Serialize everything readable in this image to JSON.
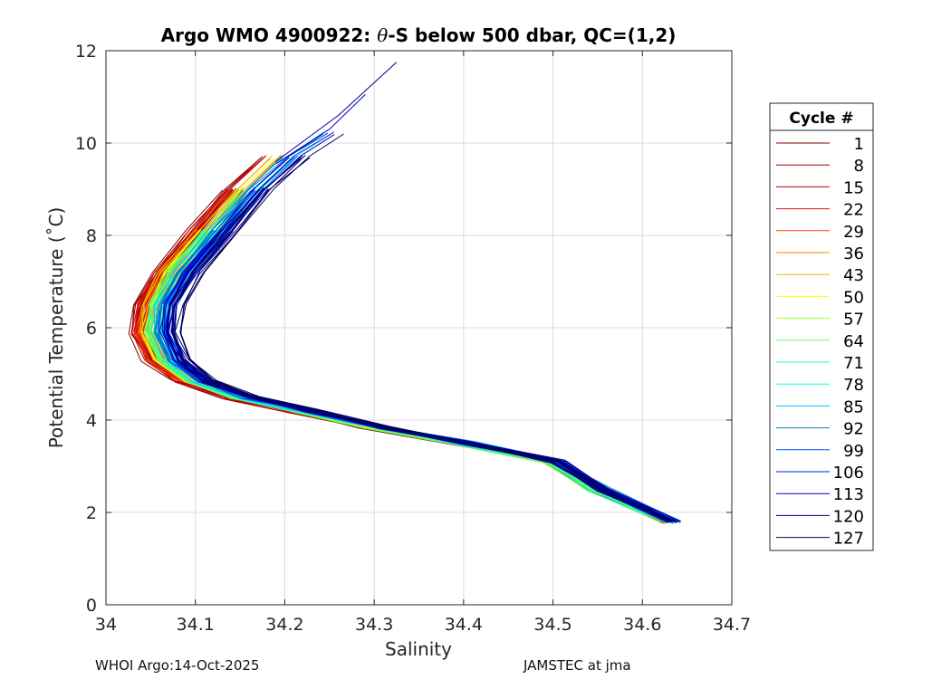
{
  "chart_data": {
    "type": "line",
    "title": "Argo WMO 4900922: θ-S below 500 dbar,  QC=(1,2)",
    "title_parts": {
      "prefix": "Argo WMO 4900922: ",
      "symbol": "θ",
      "suffix": "-S below 500 dbar,  QC=(1,2)"
    },
    "xlabel": "Salinity",
    "ylabel": "Potential Temperature (˚C)",
    "xlim": [
      34,
      34.7
    ],
    "ylim": [
      0,
      12
    ],
    "xticks": [
      "34",
      "34.1",
      "34.2",
      "34.3",
      "34.4",
      "34.5",
      "34.6",
      "34.7"
    ],
    "yticks": [
      "0",
      "2",
      "4",
      "6",
      "8",
      "10",
      "12"
    ],
    "grid": true,
    "legend_position": "right",
    "legend": {
      "title": "Cycle #",
      "entries": [
        {
          "label": "1",
          "color": "#800000"
        },
        {
          "label": "8",
          "color": "#a00000"
        },
        {
          "label": "15",
          "color": "#c00000"
        },
        {
          "label": "22",
          "color": "#e01010"
        },
        {
          "label": "29",
          "color": "#ff4000"
        },
        {
          "label": "36",
          "color": "#ff8000"
        },
        {
          "label": "43",
          "color": "#e0c000"
        },
        {
          "label": "50",
          "color": "#ffff00"
        },
        {
          "label": "57",
          "color": "#a0ff30"
        },
        {
          "label": "64",
          "color": "#60ff60"
        },
        {
          "label": "71",
          "color": "#20ffa0"
        },
        {
          "label": "78",
          "color": "#00ffe0"
        },
        {
          "label": "85",
          "color": "#00c0ff"
        },
        {
          "label": "92",
          "color": "#0080c0"
        },
        {
          "label": "99",
          "color": "#0050ff"
        },
        {
          "label": "106",
          "color": "#0020e0"
        },
        {
          "label": "113",
          "color": "#0000c0"
        },
        {
          "label": "120",
          "color": "#000090"
        },
        {
          "label": "127",
          "color": "#000060"
        }
      ]
    },
    "series_shape": [
      [
        34.63,
        1.8
      ],
      [
        34.55,
        2.5
      ],
      [
        34.5,
        3.1
      ],
      [
        34.4,
        3.5
      ],
      [
        34.3,
        3.85
      ],
      [
        34.22,
        4.2
      ],
      [
        34.15,
        4.5
      ],
      [
        34.1,
        4.85
      ],
      [
        34.07,
        5.3
      ],
      [
        34.055,
        5.9
      ],
      [
        34.06,
        6.5
      ],
      [
        34.08,
        7.2
      ],
      [
        34.12,
        8.1
      ],
      [
        34.16,
        9.0
      ],
      [
        34.2,
        9.7
      ],
      [
        34.24,
        10.2
      ]
    ],
    "extreme_profiles": [
      {
        "color": "#000090",
        "points": [
          [
            34.19,
            9.6
          ],
          [
            34.26,
            10.6
          ],
          [
            34.325,
            11.75
          ]
        ]
      },
      {
        "color": "#0000c0",
        "points": [
          [
            34.19,
            9.55
          ],
          [
            34.25,
            10.3
          ],
          [
            34.29,
            11.05
          ]
        ]
      }
    ]
  },
  "footer": {
    "left": "WHOI Argo:14-Oct-2025",
    "right": "JAMSTEC at jma"
  }
}
